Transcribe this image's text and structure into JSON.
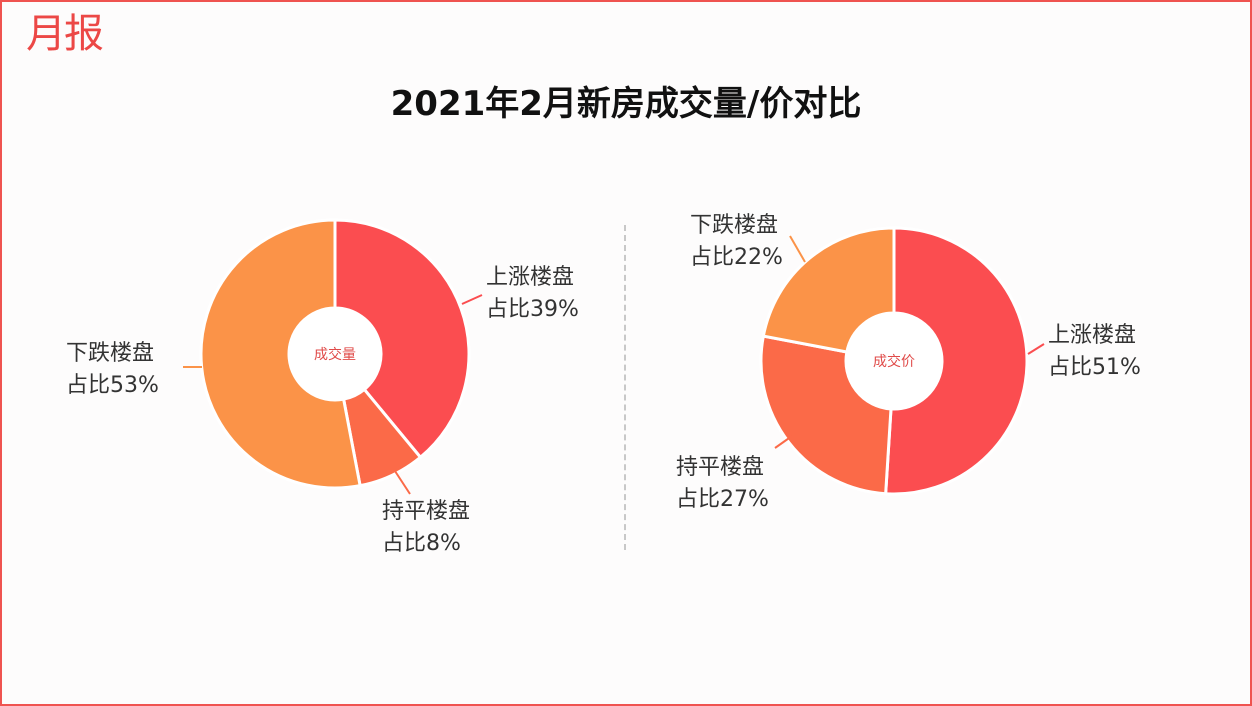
{
  "logo": "月报",
  "title": "2021年2月新房成交量/价对比",
  "colors": {
    "red": "#fb4d50",
    "orange": "#fb9348",
    "mid": "#fb6a48",
    "border": "#ef5350"
  },
  "chart_data": [
    {
      "type": "pie",
      "center_label": "成交量",
      "slices": [
        {
          "label": "上涨楼盘",
          "pct_text": "占比39%",
          "value": 39,
          "color": "#fb4d50"
        },
        {
          "label": "持平楼盘",
          "pct_text": "占比8%",
          "value": 8,
          "color": "#fb6a48"
        },
        {
          "label": "下跌楼盘",
          "pct_text": "占比53%",
          "value": 53,
          "color": "#fb9348"
        }
      ]
    },
    {
      "type": "pie",
      "center_label": "成交价",
      "slices": [
        {
          "label": "上涨楼盘",
          "pct_text": "占比51%",
          "value": 51,
          "color": "#fb4d50"
        },
        {
          "label": "持平楼盘",
          "pct_text": "占比27%",
          "value": 27,
          "color": "#fb6a48"
        },
        {
          "label": "下跌楼盘",
          "pct_text": "占比22%",
          "value": 22,
          "color": "#fb9348"
        }
      ]
    }
  ]
}
